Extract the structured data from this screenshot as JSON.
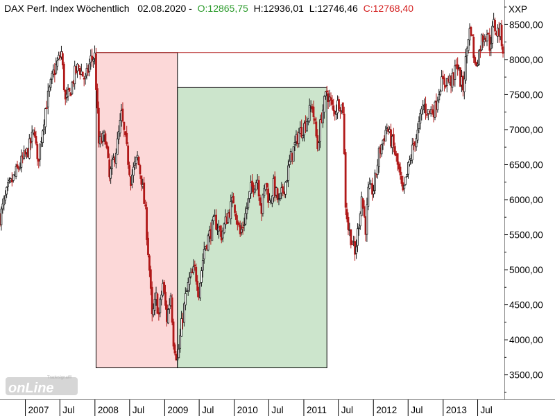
{
  "header": {
    "title": "DAX Perf. Index Wöchentlich",
    "date": "02.08.2020",
    "open": "O:12865,75",
    "high": "H:12936,01",
    "low": "L:12746,46",
    "close": "C:12768,40"
  },
  "axis_symbol": "XXP",
  "logo": {
    "main": "onLine",
    "sub": "Tradesignal®"
  },
  "colors": {
    "up": "#1a1a1a",
    "down": "#b01818",
    "red_zone": "#fcd8d8",
    "green_zone": "#cce5cc",
    "ref_line": "#b01818"
  },
  "chart_data": {
    "type": "candlestick",
    "frequency": "weekly",
    "ylim": [
      3150,
      8850
    ],
    "yticks": [
      3500,
      4000,
      4500,
      5000,
      5500,
      6000,
      6500,
      7000,
      7500,
      8000,
      8500
    ],
    "ytick_labels": [
      "3500,00",
      "4000,00",
      "4500,00",
      "5000,00",
      "5500,00",
      "6000,00",
      "6500,00",
      "7000,00",
      "7500,00",
      "8000,00",
      "8500,00"
    ],
    "xlim": [
      "2006-08-21",
      "2013-11-18"
    ],
    "xticks": [
      {
        "date": "2007-01-01",
        "label": "2007"
      },
      {
        "date": "2007-07-01",
        "label": "Jul"
      },
      {
        "date": "2008-01-01",
        "label": "2008"
      },
      {
        "date": "2008-07-01",
        "label": "Jul"
      },
      {
        "date": "2009-01-01",
        "label": "2009"
      },
      {
        "date": "2009-07-01",
        "label": "Jul"
      },
      {
        "date": "2010-01-01",
        "label": "2010"
      },
      {
        "date": "2010-07-01",
        "label": "Jul"
      },
      {
        "date": "2011-01-01",
        "label": "2011"
      },
      {
        "date": "2011-07-01",
        "label": "Jul"
      },
      {
        "date": "2012-01-01",
        "label": "2012"
      },
      {
        "date": "2012-07-01",
        "label": "Jul"
      },
      {
        "date": "2013-01-01",
        "label": "2013"
      },
      {
        "date": "2013-07-01",
        "label": "Jul"
      }
    ],
    "reference_line": {
      "y": 8100,
      "from": "2008-01-07"
    },
    "zones": [
      {
        "name": "decline",
        "from": "2008-01-07",
        "to": "2009-03-09",
        "y_top": 8100,
        "y_bottom": 3600
      },
      {
        "name": "recovery",
        "from": "2009-03-09",
        "to": "2011-05-02",
        "y_top": 7600,
        "y_bottom": 3600
      }
    ],
    "close_path": [
      [
        "2006-08-21",
        5750
      ],
      [
        "2006-10-02",
        6150
      ],
      [
        "2006-12-04",
        6500
      ],
      [
        "2007-01-15",
        6700
      ],
      [
        "2007-02-19",
        7000
      ],
      [
        "2007-03-05",
        6500
      ],
      [
        "2007-04-16",
        7300
      ],
      [
        "2007-05-28",
        7800
      ],
      [
        "2007-07-09",
        8100
      ],
      [
        "2007-07-30",
        7400
      ],
      [
        "2007-08-20",
        7500
      ],
      [
        "2007-09-17",
        7800
      ],
      [
        "2007-10-08",
        7900
      ],
      [
        "2007-11-12",
        7700
      ],
      [
        "2007-12-10",
        8000
      ],
      [
        "2007-12-31",
        8050
      ],
      [
        "2008-01-21",
        6800
      ],
      [
        "2008-02-25",
        6900
      ],
      [
        "2008-03-17",
        6300
      ],
      [
        "2008-04-28",
        6800
      ],
      [
        "2008-05-19",
        7200
      ],
      [
        "2008-06-16",
        6700
      ],
      [
        "2008-07-07",
        6300
      ],
      [
        "2008-08-11",
        6600
      ],
      [
        "2008-09-01",
        6300
      ],
      [
        "2008-09-22",
        5800
      ],
      [
        "2008-10-13",
        5000
      ],
      [
        "2008-10-27",
        4300
      ],
      [
        "2008-11-17",
        4600
      ],
      [
        "2008-12-01",
        4350
      ],
      [
        "2008-12-22",
        4800
      ],
      [
        "2009-01-12",
        4300
      ],
      [
        "2009-02-02",
        4650
      ],
      [
        "2009-02-16",
        4000
      ],
      [
        "2009-03-09",
        3700
      ],
      [
        "2009-03-30",
        4200
      ],
      [
        "2009-04-20",
        4600
      ],
      [
        "2009-05-11",
        4850
      ],
      [
        "2009-06-08",
        5000
      ],
      [
        "2009-06-29",
        4700
      ],
      [
        "2009-07-27",
        5300
      ],
      [
        "2009-08-24",
        5500
      ],
      [
        "2009-09-21",
        5700
      ],
      [
        "2009-10-26",
        5500
      ],
      [
        "2009-11-30",
        5800
      ],
      [
        "2009-12-28",
        6000
      ],
      [
        "2010-02-01",
        5500
      ],
      [
        "2010-02-22",
        5700
      ],
      [
        "2010-03-29",
        6150
      ],
      [
        "2010-05-03",
        6300
      ],
      [
        "2010-05-24",
        5850
      ],
      [
        "2010-06-14",
        6250
      ],
      [
        "2010-07-05",
        5950
      ],
      [
        "2010-07-26",
        6200
      ],
      [
        "2010-08-23",
        5950
      ],
      [
        "2010-09-27",
        6250
      ],
      [
        "2010-10-25",
        6600
      ],
      [
        "2010-12-06",
        6950
      ],
      [
        "2011-01-03",
        7050
      ],
      [
        "2011-02-14",
        7350
      ],
      [
        "2011-03-14",
        6750
      ],
      [
        "2011-04-04",
        7200
      ],
      [
        "2011-05-02",
        7550
      ],
      [
        "2011-06-06",
        7250
      ],
      [
        "2011-07-04",
        7400
      ],
      [
        "2011-07-25",
        7300
      ],
      [
        "2011-08-08",
        5950
      ],
      [
        "2011-08-22",
        5600
      ],
      [
        "2011-09-12",
        5400
      ],
      [
        "2011-09-26",
        5200
      ],
      [
        "2011-10-17",
        5700
      ],
      [
        "2011-10-31",
        6050
      ],
      [
        "2011-11-21",
        5600
      ],
      [
        "2011-12-05",
        6100
      ],
      [
        "2012-01-02",
        6150
      ],
      [
        "2012-01-30",
        6650
      ],
      [
        "2012-03-12",
        7050
      ],
      [
        "2012-03-26",
        6900
      ],
      [
        "2012-04-16",
        6750
      ],
      [
        "2012-05-14",
        6400
      ],
      [
        "2012-06-04",
        6050
      ],
      [
        "2012-07-02",
        6450
      ],
      [
        "2012-07-30",
        6800
      ],
      [
        "2012-08-20",
        6950
      ],
      [
        "2012-09-17",
        7350
      ],
      [
        "2012-10-15",
        7250
      ],
      [
        "2012-11-19",
        7300
      ],
      [
        "2012-12-17",
        7650
      ],
      [
        "2013-01-21",
        7700
      ],
      [
        "2013-02-25",
        7700
      ],
      [
        "2013-03-11",
        8000
      ],
      [
        "2013-04-01",
        7700
      ],
      [
        "2013-04-15",
        7600
      ],
      [
        "2013-05-13",
        8350
      ],
      [
        "2013-05-27",
        8450
      ],
      [
        "2013-06-17",
        7900
      ],
      [
        "2013-07-08",
        8100
      ],
      [
        "2013-07-22",
        8300
      ],
      [
        "2013-08-19",
        8400
      ],
      [
        "2013-09-02",
        8200
      ],
      [
        "2013-09-23",
        8500
      ],
      [
        "2013-10-07",
        8400
      ],
      [
        "2013-10-28",
        8400
      ],
      [
        "2013-11-11",
        8150
      ]
    ]
  }
}
